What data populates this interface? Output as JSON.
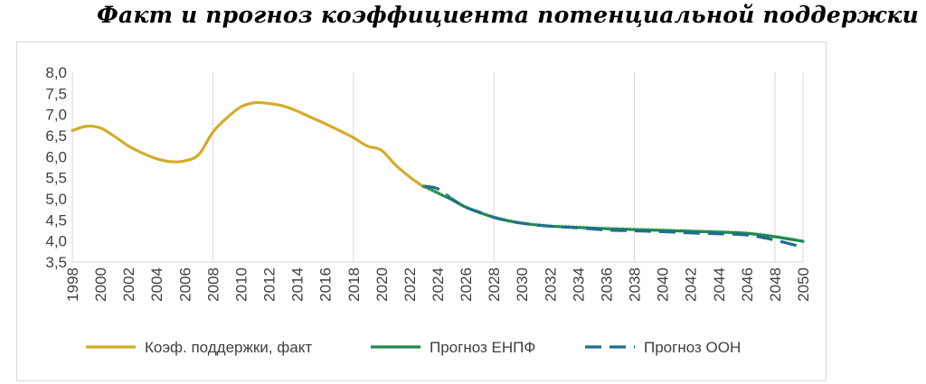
{
  "title": "Факт и прогноз коэффициента потенциальной поддержки",
  "chart_data": {
    "type": "line",
    "title": "Факт и прогноз коэффициента потенциальной поддержки",
    "xlabel": "",
    "ylabel": "",
    "xlim": [
      1998,
      2050
    ],
    "ylim": [
      3.5,
      8.0
    ],
    "y_ticks": [
      "3,5",
      "4,0",
      "4,5",
      "5,0",
      "5,5",
      "6,0",
      "6,5",
      "7,0",
      "7,5",
      "8,0"
    ],
    "x_ticks": [
      "1998",
      "2000",
      "2002",
      "2004",
      "2006",
      "2008",
      "2010",
      "2012",
      "2014",
      "2016",
      "2018",
      "2020",
      "2022",
      "2024",
      "2026",
      "2028",
      "2030",
      "2032",
      "2034",
      "2036",
      "2038",
      "2040",
      "2042",
      "2044",
      "2046",
      "2048",
      "2050"
    ],
    "grid": "vertical",
    "legend_position": "bottom",
    "series": [
      {
        "name": "Коэф. поддержки, факт",
        "color": "#D4AC2B",
        "style": "solid",
        "points": [
          [
            1998,
            6.62
          ],
          [
            1999,
            6.72
          ],
          [
            2000,
            6.68
          ],
          [
            2001,
            6.48
          ],
          [
            2002,
            6.25
          ],
          [
            2003,
            6.08
          ],
          [
            2004,
            5.95
          ],
          [
            2005,
            5.88
          ],
          [
            2006,
            5.9
          ],
          [
            2007,
            6.05
          ],
          [
            2008,
            6.58
          ],
          [
            2009,
            6.92
          ],
          [
            2010,
            7.18
          ],
          [
            2011,
            7.28
          ],
          [
            2012,
            7.26
          ],
          [
            2013,
            7.2
          ],
          [
            2014,
            7.08
          ],
          [
            2015,
            6.93
          ],
          [
            2016,
            6.78
          ],
          [
            2017,
            6.62
          ],
          [
            2018,
            6.45
          ],
          [
            2019,
            6.25
          ],
          [
            2020,
            6.15
          ],
          [
            2021,
            5.8
          ],
          [
            2022,
            5.52
          ],
          [
            2023,
            5.28
          ]
        ]
      },
      {
        "name": "Прогноз ЕНПФ",
        "color": "#1E8A4C",
        "style": "solid",
        "points": [
          [
            2023,
            5.3
          ],
          [
            2024,
            5.14
          ],
          [
            2025,
            4.98
          ],
          [
            2026,
            4.8
          ],
          [
            2027,
            4.67
          ],
          [
            2028,
            4.56
          ],
          [
            2029,
            4.48
          ],
          [
            2030,
            4.42
          ],
          [
            2031,
            4.38
          ],
          [
            2032,
            4.35
          ],
          [
            2034,
            4.32
          ],
          [
            2036,
            4.29
          ],
          [
            2038,
            4.27
          ],
          [
            2040,
            4.25
          ],
          [
            2042,
            4.23
          ],
          [
            2044,
            4.21
          ],
          [
            2046,
            4.18
          ],
          [
            2048,
            4.1
          ],
          [
            2050,
            3.99
          ]
        ]
      },
      {
        "name": "Прогноз ООН",
        "color": "#1F6E8C",
        "style": "dashed",
        "points": [
          [
            2023,
            5.3
          ],
          [
            2024,
            5.24
          ],
          [
            2025,
            5.0
          ],
          [
            2026,
            4.8
          ],
          [
            2027,
            4.68
          ],
          [
            2028,
            4.56
          ],
          [
            2029,
            4.48
          ],
          [
            2030,
            4.42
          ],
          [
            2031,
            4.38
          ],
          [
            2032,
            4.35
          ],
          [
            2034,
            4.31
          ],
          [
            2036,
            4.26
          ],
          [
            2038,
            4.24
          ],
          [
            2040,
            4.22
          ],
          [
            2042,
            4.19
          ],
          [
            2044,
            4.17
          ],
          [
            2046,
            4.14
          ],
          [
            2048,
            4.02
          ],
          [
            2050,
            3.85
          ]
        ]
      }
    ]
  }
}
